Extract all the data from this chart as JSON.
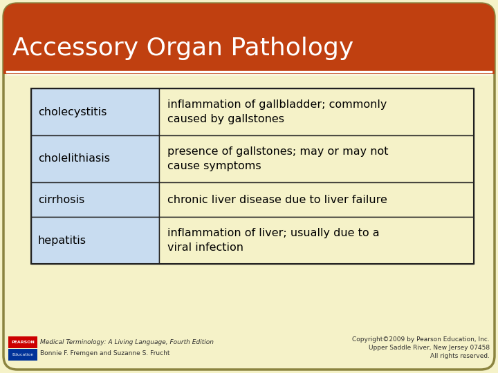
{
  "title": "Accessory Organ Pathology",
  "title_bg_color": "#C04010",
  "title_text_color": "#FFFFFF",
  "slide_bg_color": "#F5F2C8",
  "slide_border_color": "#8B8440",
  "table_terms": [
    "cholecystitis",
    "cholelithiasis",
    "cirrhosis",
    "hepatitis"
  ],
  "table_definitions": [
    "inflammation of gallbladder; commonly\ncaused by gallstones",
    "presence of gallstones; may or may not\ncause symptoms",
    "chronic liver disease due to liver failure",
    "inflammation of liver; usually due to a\nviral infection"
  ],
  "term_col_bg": "#C8DCF0",
  "def_col_bg": "#F5F2C8",
  "table_border_color": "#202020",
  "footer_left_line1": "Medical Terminology: A Living Language, Fourth Edition",
  "footer_left_line2": "Bonnie F. Fremgen and Suzanne S. Frucht",
  "footer_right_line1": "Copyright©2009 by Pearson Education, Inc.",
  "footer_right_line2": "Upper Saddle River, New Jersey 07458",
  "footer_right_line3": "All rights reserved.",
  "pearson_box_color": "#CC0000",
  "education_box_color": "#003399"
}
